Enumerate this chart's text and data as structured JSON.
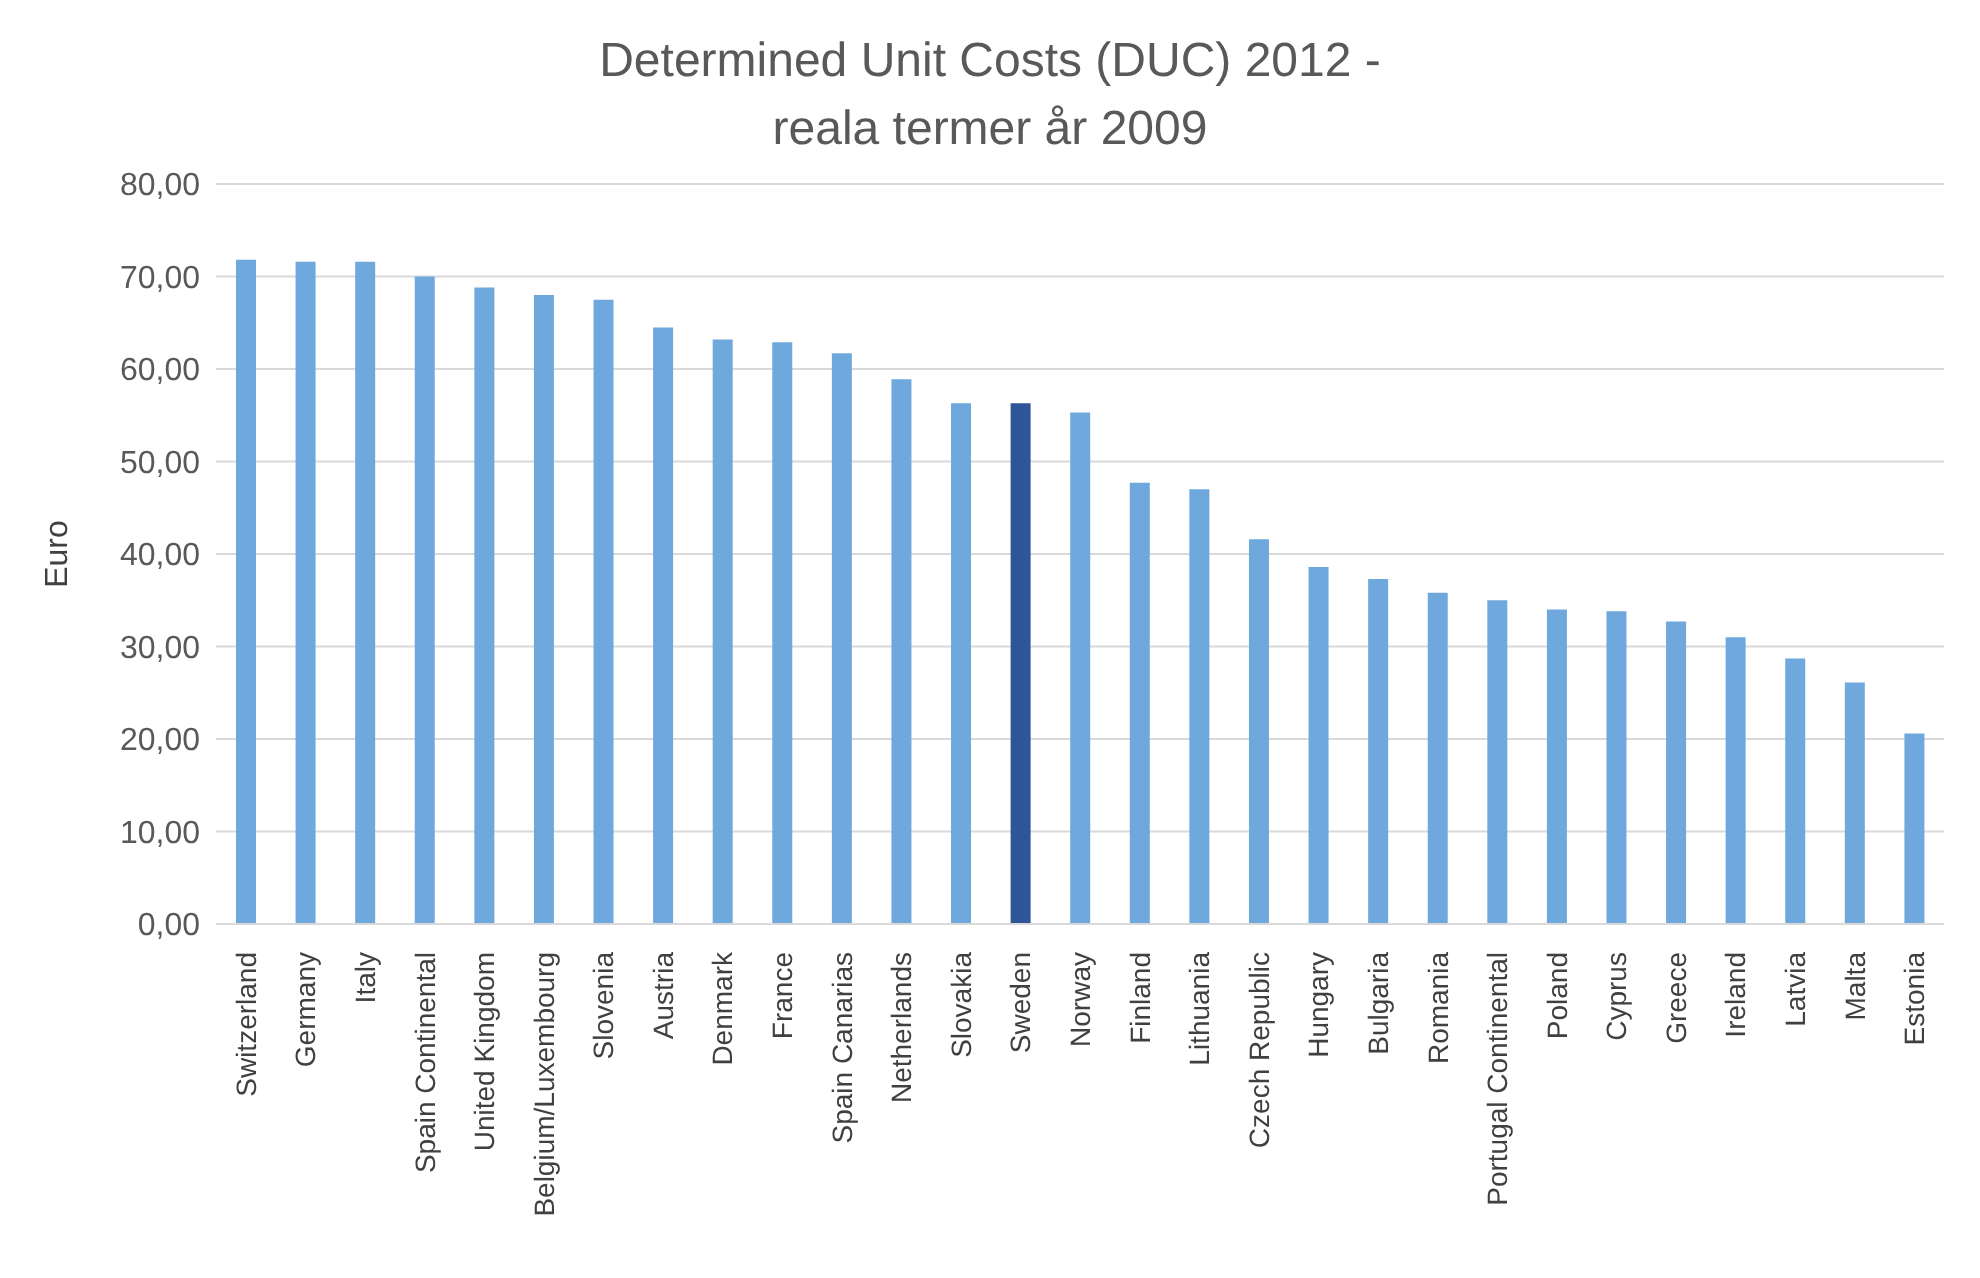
{
  "chart_data": {
    "type": "bar",
    "title": "Determined Unit Costs (DUC) 2012 -\nreala termer år 2009",
    "ylabel": "Euro",
    "categories": [
      "Switzerland",
      "Germany",
      "Italy",
      "Spain Continental",
      "United Kingdom",
      "Belgium/Luxembourg",
      "Slovenia",
      "Austria",
      "Denmark",
      "France",
      "Spain Canarias",
      "Netherlands",
      "Slovakia",
      "Sweden",
      "Norway",
      "Finland",
      "Lithuania",
      "Czech Republic",
      "Hungary",
      "Bulgaria",
      "Romania",
      "Portugal Continental",
      "Poland",
      "Cyprus",
      "Greece",
      "Ireland",
      "Latvia",
      "Malta",
      "Estonia"
    ],
    "values": [
      71.8,
      71.6,
      71.6,
      70.0,
      68.8,
      68.0,
      67.5,
      64.5,
      63.2,
      62.9,
      61.7,
      58.9,
      56.3,
      56.3,
      55.3,
      47.7,
      47.0,
      41.6,
      38.6,
      37.3,
      35.8,
      35.0,
      34.0,
      33.8,
      32.7,
      31.0,
      28.7,
      26.1,
      20.6
    ],
    "colors": [
      "#6fa8dc",
      "#6fa8dc",
      "#6fa8dc",
      "#6fa8dc",
      "#6fa8dc",
      "#6fa8dc",
      "#6fa8dc",
      "#6fa8dc",
      "#6fa8dc",
      "#6fa8dc",
      "#6fa8dc",
      "#6fa8dc",
      "#6fa8dc",
      "#2e5597",
      "#6fa8dc",
      "#6fa8dc",
      "#6fa8dc",
      "#6fa8dc",
      "#6fa8dc",
      "#6fa8dc",
      "#6fa8dc",
      "#6fa8dc",
      "#6fa8dc",
      "#6fa8dc",
      "#6fa8dc",
      "#6fa8dc",
      "#6fa8dc",
      "#6fa8dc",
      "#6fa8dc"
    ],
    "ylim": [
      0,
      80
    ],
    "yticks": [
      {
        "value": 0,
        "label": "0,00"
      },
      {
        "value": 10,
        "label": "10,00"
      },
      {
        "value": 20,
        "label": "20,00"
      },
      {
        "value": 30,
        "label": "30,00"
      },
      {
        "value": 40,
        "label": "40,00"
      },
      {
        "value": 50,
        "label": "50,00"
      },
      {
        "value": 60,
        "label": "60,00"
      },
      {
        "value": 70,
        "label": "70,00"
      },
      {
        "value": 80,
        "label": "80,00"
      }
    ],
    "grid": "y",
    "legend": false
  }
}
